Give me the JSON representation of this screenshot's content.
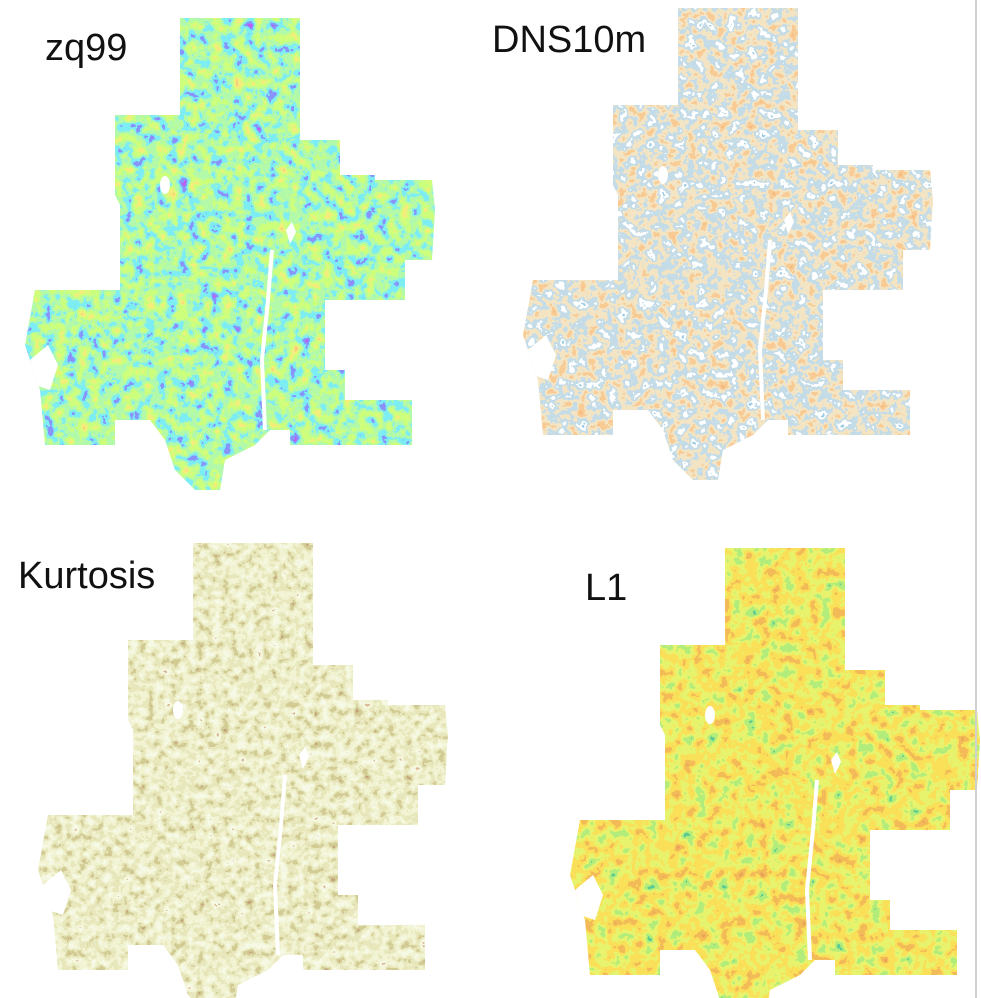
{
  "panels": [
    {
      "label": "zq99"
    },
    {
      "label": "DNS10m"
    },
    {
      "label": "Kurtosis"
    },
    {
      "label": "L1"
    }
  ]
}
